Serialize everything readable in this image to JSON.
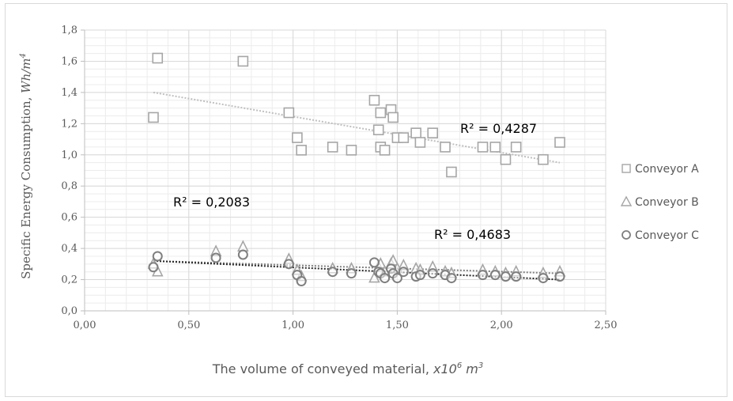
{
  "chart_data": {
    "type": "scatter",
    "xlabel": "The volume of conveyed material, ",
    "xlabel_unit": "x10",
    "xlabel_unit_exp": "6",
    "xlabel_unit_tail": " m",
    "xlabel_unit_tail_exp": "3",
    "ylabel": "Specific Energy Consumption, ",
    "ylabel_unit": "Wh/m",
    "ylabel_unit_exp": "4",
    "xlim": [
      0,
      2.5
    ],
    "ylim": [
      0,
      1.8
    ],
    "x_ticks": [
      "0,00",
      "0,50",
      "1,00",
      "1,50",
      "2,00",
      "2,50"
    ],
    "y_ticks": [
      "0,0",
      "0,2",
      "0,4",
      "0,6",
      "0,8",
      "1,0",
      "1,2",
      "1,4",
      "1,6",
      "1,8"
    ],
    "grid": true,
    "legend_position": "right",
    "series": [
      {
        "name": "Conveyor A",
        "marker": "square",
        "color": "#a6a6a6",
        "trend_color": "#bfbfbf",
        "trend": [
          [
            0.33,
            1.4
          ],
          [
            2.28,
            0.95
          ]
        ],
        "r2_label": "R² = 0,4287",
        "points": [
          [
            0.33,
            1.24
          ],
          [
            0.35,
            1.62
          ],
          [
            0.76,
            1.6
          ],
          [
            0.98,
            1.27
          ],
          [
            1.02,
            1.11
          ],
          [
            1.04,
            1.03
          ],
          [
            1.19,
            1.05
          ],
          [
            1.28,
            1.03
          ],
          [
            1.39,
            1.35
          ],
          [
            1.41,
            1.16
          ],
          [
            1.42,
            1.27
          ],
          [
            1.42,
            1.05
          ],
          [
            1.44,
            1.03
          ],
          [
            1.47,
            1.29
          ],
          [
            1.48,
            1.24
          ],
          [
            1.5,
            1.11
          ],
          [
            1.53,
            1.11
          ],
          [
            1.59,
            1.14
          ],
          [
            1.61,
            1.08
          ],
          [
            1.67,
            1.14
          ],
          [
            1.73,
            1.05
          ],
          [
            1.76,
            0.89
          ],
          [
            1.91,
            1.05
          ],
          [
            1.97,
            1.05
          ],
          [
            2.02,
            0.97
          ],
          [
            2.07,
            1.05
          ],
          [
            2.2,
            0.97
          ],
          [
            2.28,
            1.08
          ]
        ]
      },
      {
        "name": "Conveyor B",
        "marker": "triangle",
        "color": "#a6a6a6",
        "trend_color": "#7f7f7f",
        "trend": [
          [
            0.33,
            0.32
          ],
          [
            2.28,
            0.24
          ]
        ],
        "r2_label": "R² = 0,2083",
        "points": [
          [
            0.33,
            0.3
          ],
          [
            0.35,
            0.25
          ],
          [
            0.63,
            0.38
          ],
          [
            0.76,
            0.41
          ],
          [
            0.98,
            0.33
          ],
          [
            1.02,
            0.26
          ],
          [
            1.04,
            0.22
          ],
          [
            1.19,
            0.27
          ],
          [
            1.28,
            0.27
          ],
          [
            1.39,
            0.21
          ],
          [
            1.41,
            0.28
          ],
          [
            1.42,
            0.3
          ],
          [
            1.44,
            0.25
          ],
          [
            1.47,
            0.3
          ],
          [
            1.48,
            0.32
          ],
          [
            1.5,
            0.27
          ],
          [
            1.53,
            0.29
          ],
          [
            1.59,
            0.27
          ],
          [
            1.61,
            0.26
          ],
          [
            1.67,
            0.28
          ],
          [
            1.73,
            0.25
          ],
          [
            1.76,
            0.24
          ],
          [
            1.91,
            0.26
          ],
          [
            1.97,
            0.25
          ],
          [
            2.02,
            0.24
          ],
          [
            2.07,
            0.25
          ],
          [
            2.2,
            0.24
          ],
          [
            2.28,
            0.25
          ]
        ]
      },
      {
        "name": "Conveyor C",
        "marker": "circle",
        "color": "#7f7f7f",
        "trend_color": "#262626",
        "trend": [
          [
            0.33,
            0.32
          ],
          [
            2.28,
            0.2
          ]
        ],
        "r2_label": "R² = 0,4683",
        "points": [
          [
            0.33,
            0.28
          ],
          [
            0.35,
            0.35
          ],
          [
            0.63,
            0.34
          ],
          [
            0.76,
            0.36
          ],
          [
            0.98,
            0.3
          ],
          [
            1.02,
            0.23
          ],
          [
            1.04,
            0.19
          ],
          [
            1.19,
            0.25
          ],
          [
            1.28,
            0.24
          ],
          [
            1.39,
            0.31
          ],
          [
            1.41,
            0.25
          ],
          [
            1.42,
            0.24
          ],
          [
            1.44,
            0.21
          ],
          [
            1.47,
            0.27
          ],
          [
            1.48,
            0.24
          ],
          [
            1.5,
            0.21
          ],
          [
            1.53,
            0.25
          ],
          [
            1.59,
            0.22
          ],
          [
            1.61,
            0.23
          ],
          [
            1.67,
            0.24
          ],
          [
            1.73,
            0.23
          ],
          [
            1.76,
            0.21
          ],
          [
            1.91,
            0.23
          ],
          [
            1.97,
            0.23
          ],
          [
            2.02,
            0.22
          ],
          [
            2.07,
            0.22
          ],
          [
            2.2,
            0.21
          ],
          [
            2.28,
            0.22
          ]
        ]
      }
    ]
  }
}
